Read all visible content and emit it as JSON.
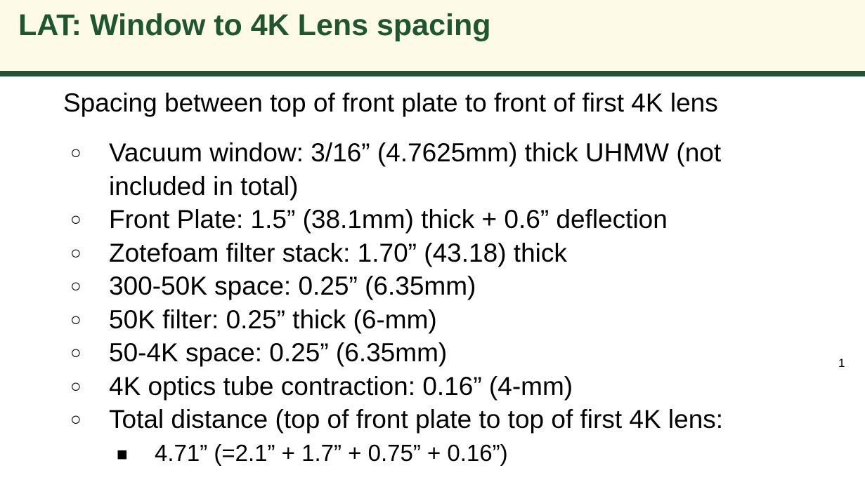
{
  "slide": {
    "title": "LAT: Window to 4K Lens spacing",
    "intro": "Spacing between top of front plate to front of first 4K lens",
    "bullet_glyph": "○",
    "sub_bullet_glyph": "■",
    "items": [
      "Vacuum window: 3/16” (4.7625mm) thick UHMW (not included in total)",
      "Front Plate: 1.5” (38.1mm) thick + 0.6” deflection",
      "Zotefoam filter stack: 1.70” (43.18) thick",
      "300-50K space: 0.25” (6.35mm)",
      "50K filter: 0.25” thick (6-mm)",
      "50-4K space: 0.25” (6.35mm)",
      "4K optics tube contraction: 0.16” (4-mm)",
      "Total distance (top of front plate to top of first 4K lens:"
    ],
    "sub_items": [
      "4.71” (=2.1” + 1.7” + 0.75” + 0.16”)"
    ],
    "page_number": "1",
    "colors": {
      "header_background": "#fdfbe8",
      "accent": "#1e5631"
    }
  }
}
